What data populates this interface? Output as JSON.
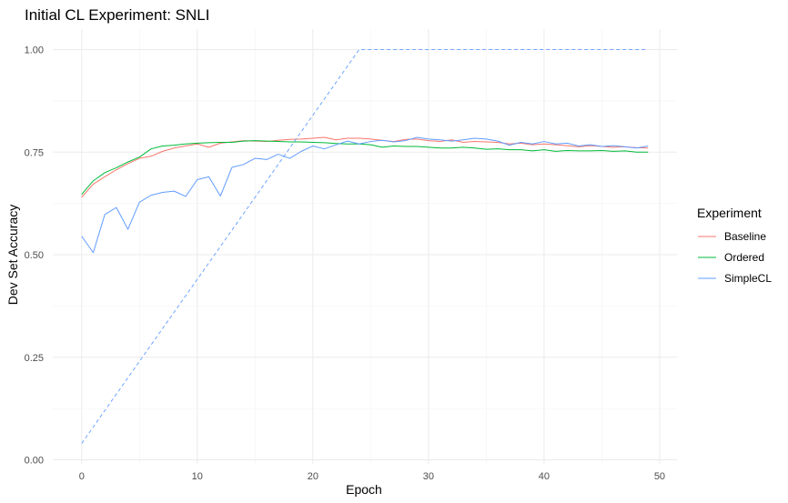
{
  "chart_data": {
    "type": "line",
    "title": "Initial CL Experiment: SNLI",
    "xlabel": "Epoch",
    "ylabel": "Dev Set Accuracy",
    "xlim": [
      -2.5,
      51.5
    ],
    "ylim": [
      -0.01,
      1.05
    ],
    "x_ticks": [
      0,
      10,
      20,
      30,
      40,
      50
    ],
    "y_ticks": [
      0.0,
      0.25,
      0.5,
      0.75,
      1.0
    ],
    "x_tick_labels": [
      "0",
      "10",
      "20",
      "30",
      "40",
      "50"
    ],
    "y_tick_labels": [
      "0.00",
      "0.25",
      "0.50",
      "0.75",
      "1.00"
    ],
    "grid": true,
    "legend": {
      "title": "Experiment",
      "placement": "right",
      "entries": [
        "Baseline",
        "Ordered",
        "SimpleCL"
      ]
    },
    "x": [
      0,
      1,
      2,
      3,
      4,
      5,
      6,
      7,
      8,
      9,
      10,
      11,
      12,
      13,
      14,
      15,
      16,
      17,
      18,
      19,
      20,
      21,
      22,
      23,
      24,
      25,
      26,
      27,
      28,
      29,
      30,
      31,
      32,
      33,
      34,
      35,
      36,
      37,
      38,
      39,
      40,
      41,
      42,
      43,
      44,
      45,
      46,
      47,
      48,
      49
    ],
    "series": [
      {
        "name": "Baseline",
        "color": "#F8766D",
        "style": "solid",
        "values": [
          0.64,
          0.672,
          0.69,
          0.707,
          0.722,
          0.735,
          0.74,
          0.752,
          0.76,
          0.765,
          0.77,
          0.762,
          0.772,
          0.775,
          0.778,
          0.777,
          0.776,
          0.779,
          0.781,
          0.782,
          0.784,
          0.786,
          0.78,
          0.784,
          0.784,
          0.782,
          0.779,
          0.776,
          0.781,
          0.782,
          0.778,
          0.776,
          0.78,
          0.774,
          0.776,
          0.775,
          0.774,
          0.77,
          0.772,
          0.768,
          0.77,
          0.768,
          0.766,
          0.763,
          0.766,
          0.764,
          0.762,
          0.763,
          0.761,
          0.76
        ]
      },
      {
        "name": "Ordered",
        "color": "#00BA38",
        "style": "solid",
        "values": [
          0.647,
          0.68,
          0.7,
          0.712,
          0.726,
          0.738,
          0.758,
          0.765,
          0.767,
          0.77,
          0.772,
          0.773,
          0.774,
          0.774,
          0.777,
          0.778,
          0.777,
          0.776,
          0.775,
          0.775,
          0.774,
          0.773,
          0.771,
          0.77,
          0.77,
          0.768,
          0.762,
          0.765,
          0.764,
          0.764,
          0.762,
          0.76,
          0.76,
          0.762,
          0.76,
          0.757,
          0.758,
          0.756,
          0.756,
          0.753,
          0.756,
          0.752,
          0.754,
          0.753,
          0.753,
          0.754,
          0.752,
          0.753,
          0.75,
          0.75
        ]
      },
      {
        "name": "SimpleCL",
        "color": "#619CFF",
        "style": "solid",
        "values": [
          0.545,
          0.505,
          0.598,
          0.615,
          0.562,
          0.628,
          0.645,
          0.652,
          0.655,
          0.642,
          0.683,
          0.69,
          0.643,
          0.713,
          0.72,
          0.735,
          0.732,
          0.745,
          0.735,
          0.752,
          0.765,
          0.758,
          0.768,
          0.777,
          0.77,
          0.776,
          0.779,
          0.775,
          0.778,
          0.786,
          0.782,
          0.78,
          0.777,
          0.78,
          0.784,
          0.782,
          0.777,
          0.767,
          0.774,
          0.77,
          0.776,
          0.77,
          0.772,
          0.765,
          0.768,
          0.764,
          0.766,
          0.763,
          0.76,
          0.765
        ]
      },
      {
        "name": "",
        "color": "#619CFF",
        "style": "dashed",
        "x": [
          0,
          24,
          49
        ],
        "values": [
          0.04,
          1.0,
          1.0
        ]
      }
    ]
  }
}
